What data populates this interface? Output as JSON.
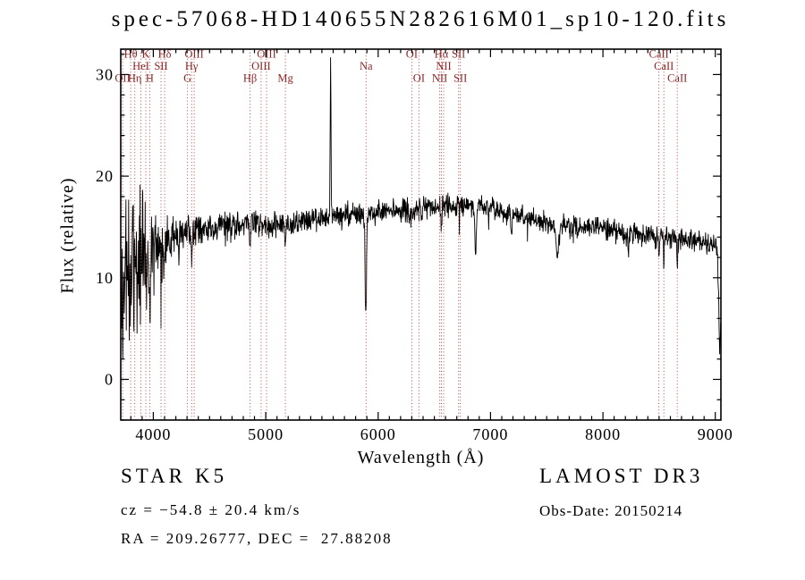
{
  "chart_data": {
    "type": "line",
    "title": "spec-57068-HD140655N282616M01_sp10-120.fits",
    "xlabel": "Wavelength (Å)",
    "ylabel": "Flux (relative)",
    "xlim": [
      3710,
      9050
    ],
    "ylim": [
      -4,
      32.5
    ],
    "xticks": [
      4000,
      5000,
      6000,
      7000,
      8000,
      9000
    ],
    "yticks": [
      0,
      10,
      20,
      30
    ],
    "x_minor_step": 100,
    "y_minor_step": 2,
    "grid": false,
    "legend": "none",
    "colors": {
      "spectrum": "#000000",
      "line_marker": "#b04848",
      "line_label": "#8b2626",
      "axis": "#000000",
      "background": "#ffffff"
    },
    "spectral_lines": [
      {
        "label": "OII",
        "wavelength": 3727,
        "row": 3
      },
      {
        "label": "Hθ",
        "wavelength": 3798,
        "row": 1
      },
      {
        "label": "Hη",
        "wavelength": 3835,
        "row": 3
      },
      {
        "label": "HeI",
        "wavelength": 3889,
        "row": 2
      },
      {
        "label": "K",
        "wavelength": 3933,
        "row": 1
      },
      {
        "label": "H",
        "wavelength": 3968,
        "row": 3
      },
      {
        "label": "SII",
        "wavelength": 4068,
        "row": 2
      },
      {
        "label": "Hδ",
        "wavelength": 4101,
        "row": 1
      },
      {
        "label": "G",
        "wavelength": 4304,
        "row": 3
      },
      {
        "label": "Hγ",
        "wavelength": 4340,
        "row": 2
      },
      {
        "label": "OIII",
        "wavelength": 4363,
        "row": 1
      },
      {
        "label": "Hβ",
        "wavelength": 4861,
        "row": 3
      },
      {
        "label": "OIII",
        "wavelength": 4959,
        "row": 2
      },
      {
        "label": "OIII",
        "wavelength": 5007,
        "row": 1
      },
      {
        "label": "Mg",
        "wavelength": 5175,
        "row": 3
      },
      {
        "label": "Na",
        "wavelength": 5893,
        "row": 2
      },
      {
        "label": "OI",
        "wavelength": 6300,
        "row": 1
      },
      {
        "label": "OI",
        "wavelength": 6363,
        "row": 3
      },
      {
        "label": "NII",
        "wavelength": 6548,
        "row": 3
      },
      {
        "label": "Hα",
        "wavelength": 6563,
        "row": 1
      },
      {
        "label": "NII",
        "wavelength": 6583,
        "row": 2
      },
      {
        "label": "SII",
        "wavelength": 6716,
        "row": 1
      },
      {
        "label": "SII",
        "wavelength": 6731,
        "row": 3
      },
      {
        "label": "CaII",
        "wavelength": 8498,
        "row": 1
      },
      {
        "label": "CaII",
        "wavelength": 8542,
        "row": 2
      },
      {
        "label": "CaII",
        "wavelength": 8662,
        "row": 3
      }
    ],
    "spectrum": {
      "sample_step": 3,
      "clip_min": -2.0,
      "envelope": [
        [
          3711,
          9.0,
          7.5
        ],
        [
          3760,
          11.0,
          6.5
        ],
        [
          3820,
          11.5,
          5.5
        ],
        [
          3880,
          12.0,
          5.0
        ],
        [
          3950,
          12.5,
          4.0
        ],
        [
          4020,
          13.0,
          3.0
        ],
        [
          4120,
          13.5,
          2.2
        ],
        [
          4250,
          14.2,
          1.7
        ],
        [
          4400,
          14.8,
          1.3
        ],
        [
          4600,
          15.1,
          1.05
        ],
        [
          4900,
          15.3,
          0.95
        ],
        [
          5150,
          15.2,
          0.9
        ],
        [
          5400,
          15.7,
          0.9
        ],
        [
          5700,
          16.1,
          0.9
        ],
        [
          6000,
          16.4,
          0.9
        ],
        [
          6300,
          16.7,
          0.9
        ],
        [
          6600,
          17.1,
          0.85
        ],
        [
          6900,
          17.1,
          0.8
        ],
        [
          7100,
          16.5,
          0.8
        ],
        [
          7300,
          16.0,
          0.8
        ],
        [
          7600,
          15.1,
          0.85
        ],
        [
          7900,
          15.0,
          0.8
        ],
        [
          8200,
          14.4,
          0.8
        ],
        [
          8500,
          14.2,
          0.8
        ],
        [
          8800,
          13.7,
          0.85
        ],
        [
          9000,
          13.2,
          0.95
        ],
        [
          9047,
          11.5,
          1.3
        ]
      ],
      "features": [
        [
          3934,
          -5.0,
          6
        ],
        [
          3969,
          -5.0,
          6
        ],
        [
          4101,
          -3.0,
          5
        ],
        [
          4226,
          -3.5,
          5
        ],
        [
          4340,
          -2.5,
          5
        ],
        [
          4861,
          -2.5,
          5
        ],
        [
          5175,
          -2.0,
          8
        ],
        [
          5577,
          15.5,
          5
        ],
        [
          5890,
          -9.5,
          9
        ],
        [
          6277,
          -1.5,
          6
        ],
        [
          6563,
          -2.5,
          5
        ],
        [
          6867,
          -5.0,
          9
        ],
        [
          7186,
          -2.0,
          8
        ],
        [
          7594,
          -3.5,
          13
        ],
        [
          8227,
          -2.5,
          5
        ],
        [
          8498,
          -2.5,
          5
        ],
        [
          8542,
          -3.0,
          5
        ],
        [
          8662,
          -3.0,
          5
        ],
        [
          9040,
          -9.0,
          12
        ]
      ],
      "noise": {
        "seed": 20150214,
        "spike_probability": 0.02,
        "spike_scale": 2.0
      }
    }
  },
  "footer": {
    "object_type": "STAR",
    "subclass": "K5",
    "survey": "LAMOST DR3",
    "cz_line": "cz = −54.8 ± 20.4 km/s",
    "obs_date_line": "Obs-Date: 20150214",
    "coords_line": "RA = 209.26777, DEC =  27.88208"
  }
}
